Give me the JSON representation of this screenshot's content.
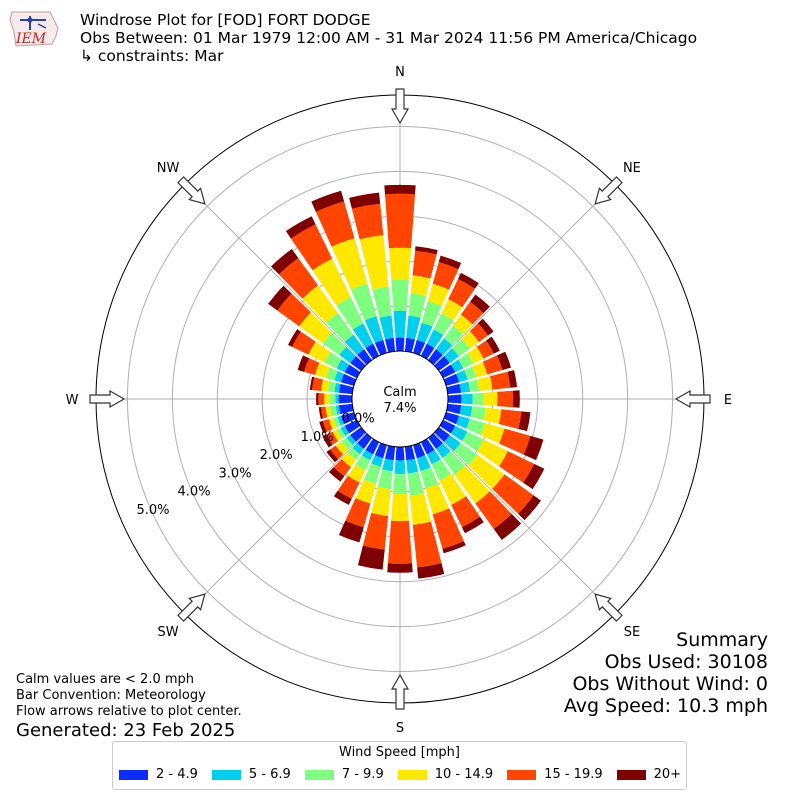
{
  "logo": {
    "text": "IEM",
    "name": "iem-logo"
  },
  "header": {
    "title": "Windrose Plot for [FOD] FORT DODGE",
    "obs": "Obs Between: 01 Mar 1979 12:00 AM - 31 Mar 2024 11:56 PM America/Chicago",
    "constraints": "↳ constraints: Mar"
  },
  "notes": {
    "calm": "Calm values are < 2.0 mph",
    "convention": "Bar Convention: Meteorology",
    "flow": "Flow arrows relative to plot center.",
    "generated": "Generated: 23 Feb 2025"
  },
  "summary": {
    "title": "Summary",
    "obs_used": "Obs Used: 30108",
    "obs_without_wind": "Obs Without Wind: 0",
    "avg_speed": "Avg Speed: 10.3 mph"
  },
  "chart_data": {
    "type": "windrose",
    "calm_label": "Calm",
    "calm_pct": "7.4%",
    "compass": [
      "N",
      "NE",
      "E",
      "SE",
      "S",
      "SW",
      "W",
      "NW"
    ],
    "radial_ticks": [
      0,
      1,
      2,
      3,
      4,
      5
    ],
    "radial_tick_labels": [
      "0.0%",
      "1.0%",
      "2.0%",
      "3.0%",
      "4.0%",
      "5.0%"
    ],
    "radial_max": 5.7,
    "legend_title": "Wind Speed [mph]",
    "bins": [
      "2 - 4.9",
      "5 - 6.9",
      "7 - 9.9",
      "10 - 14.9",
      "15 - 19.9",
      "20+"
    ],
    "colors": [
      "#0a2cff",
      "#00d0ee",
      "#7fff7f",
      "#ffe800",
      "#ff4500",
      "#7f0000"
    ],
    "directions": [
      0,
      10,
      20,
      30,
      40,
      50,
      60,
      70,
      80,
      90,
      100,
      110,
      120,
      130,
      140,
      150,
      160,
      170,
      180,
      190,
      200,
      210,
      220,
      230,
      240,
      250,
      260,
      270,
      280,
      290,
      300,
      310,
      320,
      330,
      340,
      350
    ],
    "cumulative": [
      [
        0.3,
        0.9,
        1.6,
        2.3,
        3.5,
        3.7
      ],
      [
        0.3,
        0.8,
        1.3,
        1.7,
        2.25,
        2.35
      ],
      [
        0.3,
        0.7,
        1.2,
        1.6,
        2.1,
        2.25
      ],
      [
        0.3,
        0.65,
        1.05,
        1.4,
        1.9,
        2.05
      ],
      [
        0.3,
        0.6,
        0.95,
        1.25,
        1.6,
        1.8
      ],
      [
        0.3,
        0.55,
        0.85,
        1.1,
        1.35,
        1.5
      ],
      [
        0.3,
        0.5,
        0.75,
        1.0,
        1.25,
        1.4
      ],
      [
        0.3,
        0.5,
        0.7,
        0.95,
        1.3,
        1.5
      ],
      [
        0.3,
        0.5,
        0.7,
        1.0,
        1.4,
        1.55
      ],
      [
        0.3,
        0.55,
        0.8,
        1.1,
        1.45,
        1.6
      ],
      [
        0.3,
        0.55,
        0.85,
        1.2,
        1.65,
        1.85
      ],
      [
        0.3,
        0.55,
        0.9,
        1.35,
        1.95,
        2.25
      ],
      [
        0.3,
        0.6,
        1.0,
        1.6,
        2.25,
        2.5
      ],
      [
        0.3,
        0.6,
        1.05,
        1.8,
        2.6,
        2.8
      ],
      [
        0.3,
        0.55,
        1.0,
        1.8,
        2.5,
        2.8
      ],
      [
        0.3,
        0.55,
        0.95,
        1.55,
        2.1,
        2.25
      ],
      [
        0.3,
        0.6,
        1.0,
        1.6,
        2.4,
        2.5
      ],
      [
        0.3,
        0.6,
        1.1,
        1.75,
        2.7,
        2.95
      ],
      [
        0.3,
        0.6,
        1.05,
        1.65,
        2.6,
        2.8
      ],
      [
        0.3,
        0.55,
        0.95,
        1.55,
        2.3,
        2.75
      ],
      [
        0.3,
        0.5,
        0.9,
        1.35,
        1.9,
        2.25
      ],
      [
        0.3,
        0.45,
        0.7,
        1.0,
        1.4,
        1.55
      ],
      [
        0.3,
        0.45,
        0.6,
        0.8,
        1.05,
        1.2
      ],
      [
        0.3,
        0.4,
        0.55,
        0.7,
        0.85,
        0.95
      ],
      [
        0.3,
        0.4,
        0.5,
        0.6,
        0.75,
        0.85
      ],
      [
        0.3,
        0.38,
        0.48,
        0.58,
        0.72,
        0.8
      ],
      [
        0.3,
        0.37,
        0.5,
        0.6,
        0.7,
        0.75
      ],
      [
        0.3,
        0.37,
        0.5,
        0.62,
        0.75,
        0.8
      ],
      [
        0.3,
        0.4,
        0.55,
        0.7,
        0.9,
        0.95
      ],
      [
        0.3,
        0.45,
        0.65,
        0.9,
        1.15,
        1.3
      ],
      [
        0.3,
        0.5,
        0.8,
        1.2,
        1.6,
        1.7
      ],
      [
        0.3,
        0.6,
        1.05,
        1.7,
        2.3,
        2.55
      ],
      [
        0.3,
        0.7,
        1.3,
        2.05,
        2.8,
        3.05
      ],
      [
        0.3,
        0.8,
        1.45,
        2.4,
        3.25,
        3.45
      ],
      [
        0.3,
        0.85,
        1.6,
        2.65,
        3.5,
        3.75
      ],
      [
        0.3,
        0.8,
        1.45,
        2.6,
        3.3,
        3.55
      ]
    ]
  }
}
